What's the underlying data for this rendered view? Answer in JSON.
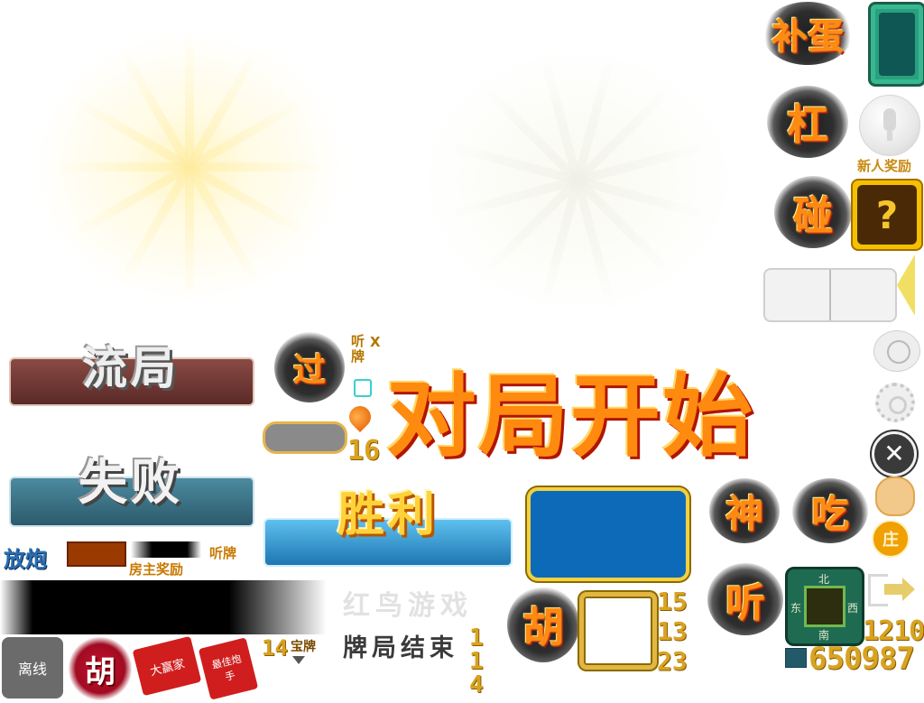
{
  "actions": {
    "bugang": "补蛋",
    "gang": "杠",
    "peng": "碰",
    "guo": "过",
    "shen": "神",
    "chi": "吃",
    "ting": "听",
    "hu": "胡"
  },
  "banners": {
    "liuju": "流局",
    "shibai": "失败",
    "shengli": "胜利",
    "duiju_start": "对局开始"
  },
  "labels": {
    "newbie_reward": "新人奖励",
    "host_reward": "房主奖励",
    "fangpao": "放炮",
    "tingpai_small": "听牌",
    "tingpai_vertical": "听牌",
    "tingpai_x": "X",
    "tingpai_bottom": "听牌",
    "offline": "离线",
    "baopai": "宝牌",
    "game_over": "牌局结束",
    "brand": "红鸟游戏",
    "question": "?",
    "zhuang": "庄",
    "stamp1": "大赢家",
    "stamp2": "最佳炮手"
  },
  "compass": {
    "north": "北",
    "south": "南",
    "east": "东",
    "west": "西"
  },
  "numbers": {
    "n16": "16",
    "n14": "14",
    "n114": "114",
    "n15": "15",
    "n13": "13",
    "n23": "23",
    "n1210": "1210",
    "n650987": "650987"
  },
  "colors": {
    "gold": "#d8a320",
    "ink_orange": "#ff8a10",
    "blue_panel": "#0d6ab8",
    "green_tile": "#1f6b52",
    "ribbon_red": "#7a3b36",
    "ribbon_teal": "#3d6f83",
    "ribbon_blue": "#2f8fc8"
  }
}
